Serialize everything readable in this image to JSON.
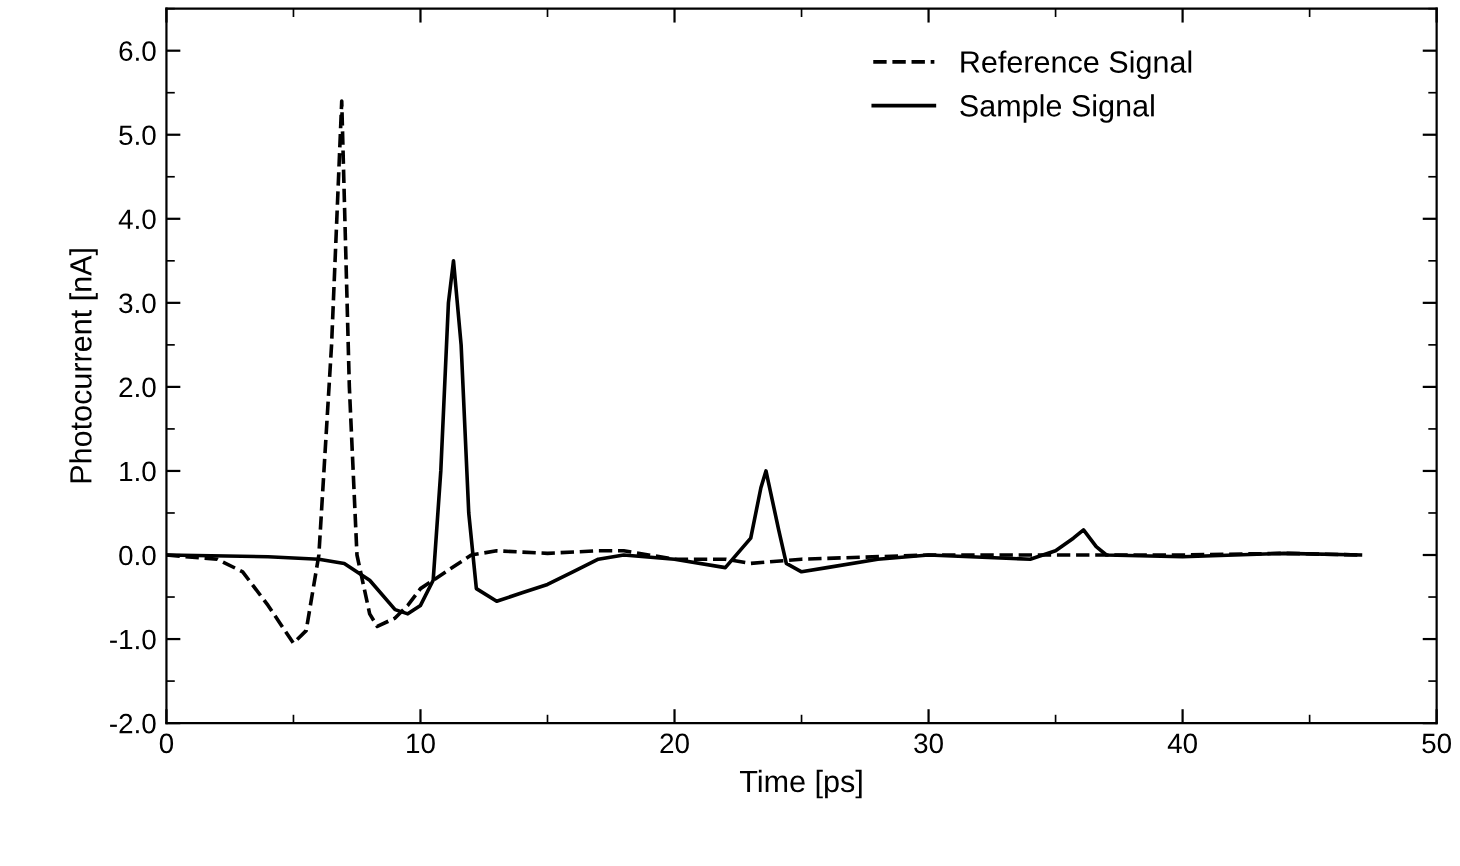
{
  "chart_data": {
    "type": "line",
    "xlabel": "Time [ps]",
    "ylabel": "Photocurrent [nA]",
    "xlim": [
      0,
      50
    ],
    "xticks": [
      0,
      10,
      20,
      30,
      40,
      50
    ],
    "ylim": [
      -2.0,
      6.5
    ],
    "yticks": [
      {
        "value": -2,
        "label": "-2.0"
      },
      {
        "value": -1,
        "label": "-1.0"
      },
      {
        "value": 0,
        "label": "0.0"
      },
      {
        "value": 1,
        "label": "1.0"
      },
      {
        "value": 2,
        "label": "2.0"
      },
      {
        "value": 3,
        "label": "3.0"
      },
      {
        "value": 4,
        "label": "4.0"
      },
      {
        "value": 5,
        "label": "5.0"
      },
      {
        "value": 6,
        "label": "6.0"
      }
    ],
    "grid": false,
    "legend": "top right",
    "marker": "none",
    "series": [
      {
        "name": "Reference Signal",
        "color": "#000000",
        "line_style": "dashed",
        "x": [
          0,
          2,
          3,
          4,
          5,
          5.5,
          6,
          6.5,
          6.9,
          7.2,
          7.5,
          8,
          8.3,
          9,
          9.5,
          10,
          10.5,
          11,
          12,
          13,
          15,
          17,
          18,
          20,
          22,
          23,
          25,
          30,
          35,
          40,
          44,
          47
        ],
        "values": [
          0,
          -0.05,
          -0.2,
          -0.6,
          -1.05,
          -0.9,
          0.0,
          2.5,
          5.4,
          2.0,
          0.0,
          -0.7,
          -0.85,
          -0.75,
          -0.6,
          -0.4,
          -0.3,
          -0.2,
          0.0,
          0.05,
          0.02,
          0.05,
          0.05,
          -0.05,
          -0.05,
          -0.1,
          -0.05,
          0.0,
          0.0,
          0.0,
          0.02,
          0.0
        ]
      },
      {
        "name": "Sample Signal",
        "color": "#000000",
        "line_style": "solid",
        "x": [
          0,
          4,
          6,
          7,
          8,
          9,
          9.5,
          10,
          10.5,
          10.8,
          11.1,
          11.3,
          11.6,
          11.9,
          12.2,
          13,
          14,
          15,
          16,
          17,
          18,
          20,
          22,
          23,
          23.4,
          23.6,
          24.1,
          24.4,
          25,
          26,
          28,
          30,
          34,
          35,
          35.7,
          36.1,
          36.6,
          37,
          40,
          44,
          47
        ],
        "values": [
          0,
          -0.02,
          -0.05,
          -0.1,
          -0.3,
          -0.65,
          -0.7,
          -0.6,
          -0.3,
          1.0,
          3.0,
          3.5,
          2.5,
          0.5,
          -0.4,
          -0.55,
          -0.45,
          -0.35,
          -0.2,
          -0.05,
          0.0,
          -0.05,
          -0.15,
          0.2,
          0.8,
          1.0,
          0.3,
          -0.1,
          -0.2,
          -0.15,
          -0.05,
          0.0,
          -0.05,
          0.05,
          0.2,
          0.3,
          0.1,
          0.0,
          -0.02,
          0.02,
          0.0
        ]
      }
    ]
  }
}
